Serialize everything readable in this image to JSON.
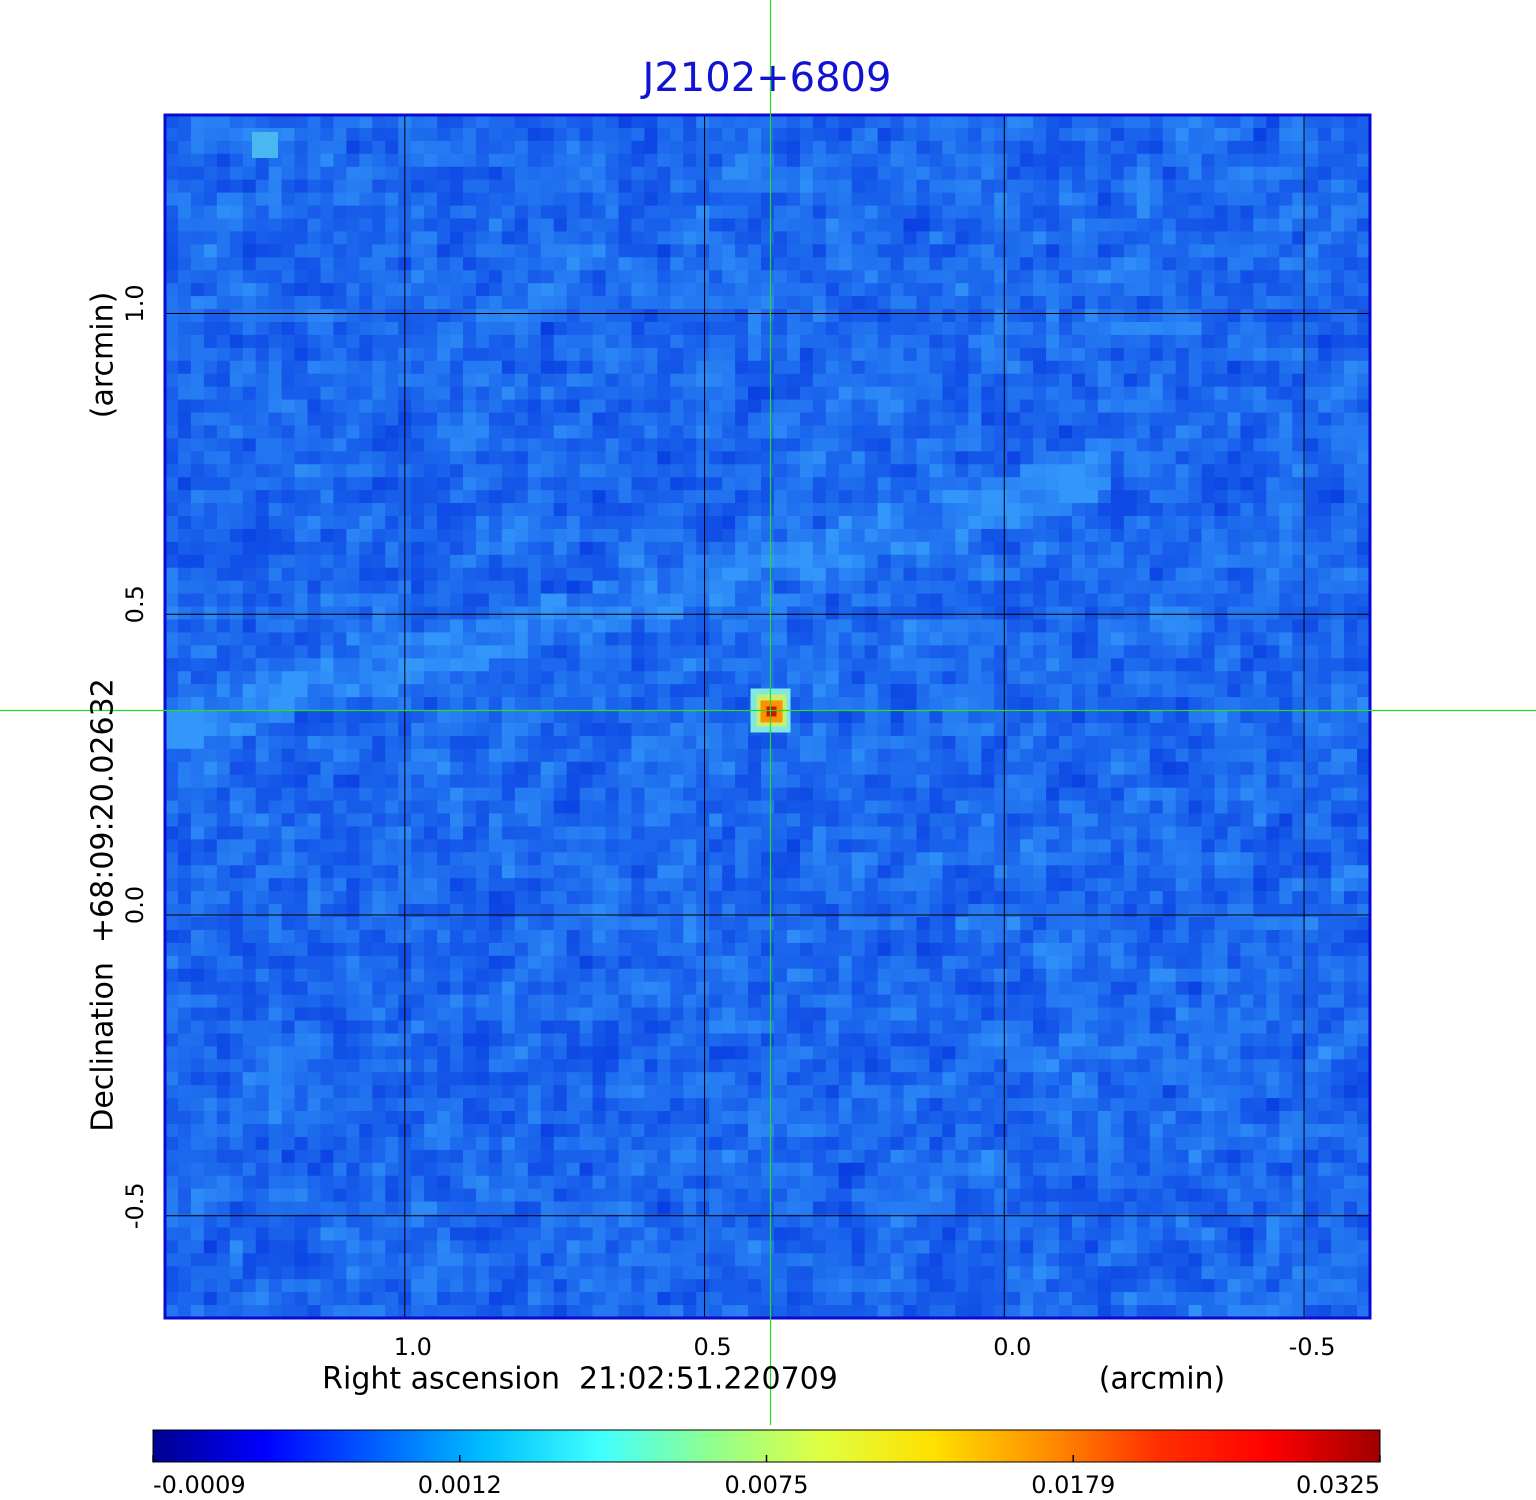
{
  "chart_data": {
    "type": "image",
    "title": "J2102+6809",
    "x_label": "Right ascension  21:02:51.220709",
    "x_unit": "(arcmin)",
    "y_label": "Declination  +68:09:20.02632",
    "y_unit": "(arcmin)",
    "xlim": [
      1.4,
      -0.61
    ],
    "ylim": [
      -0.67,
      1.33
    ],
    "xticks": [
      {
        "value": 1,
        "label": "1.0"
      },
      0.5,
      {
        "value": 0,
        "label": "0.0"
      },
      -0.5
    ],
    "yticks": [
      {
        "value": 1,
        "label": "1.0"
      },
      0.5,
      {
        "value": 0,
        "label": "0.0"
      },
      -0.5
    ],
    "grid": true,
    "frame_color": "#0a0ad0",
    "crosshair": {
      "x": 0.39,
      "y": 0.34,
      "color": "#22dd22"
    },
    "colorbar": {
      "ticks": [
        -0.0009,
        0.0012,
        0.0075,
        0.0179,
        0.0325
      ],
      "colormap": [
        "#00008f",
        "#0000ff",
        "#0060ff",
        "#00c0ff",
        "#40ffff",
        "#90ff90",
        "#e0ff40",
        "#ffe000",
        "#ff9000",
        "#ff3000",
        "#ff0000",
        "#a00000"
      ]
    }
  }
}
